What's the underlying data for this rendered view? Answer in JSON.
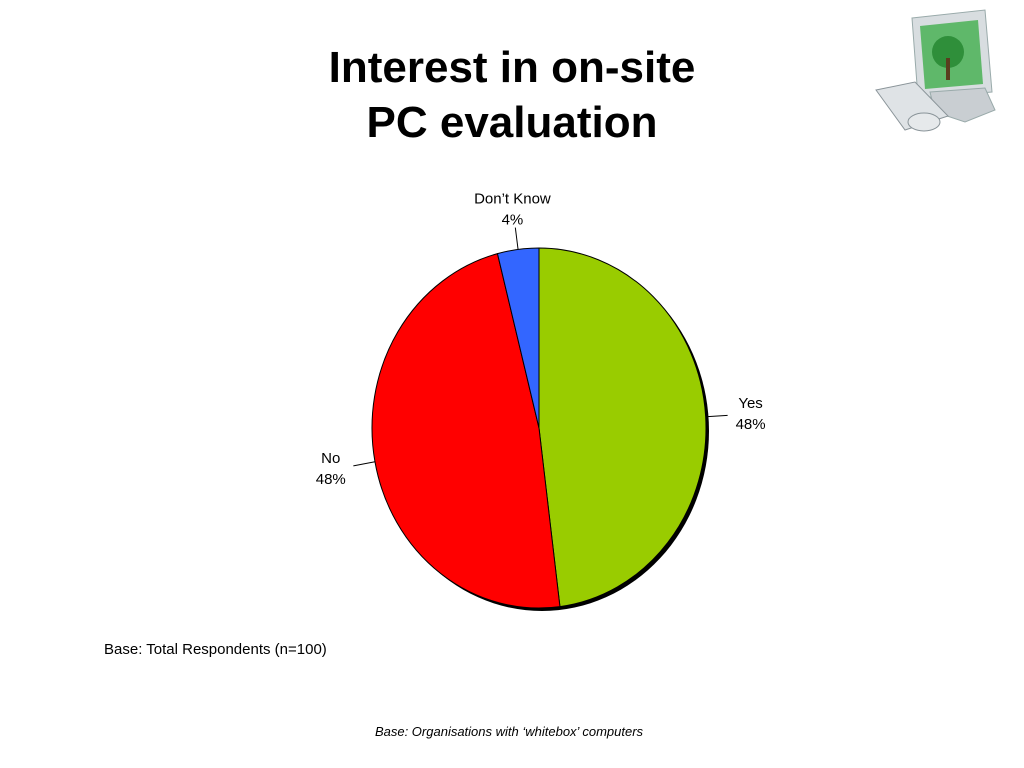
{
  "chart_data": {
    "type": "pie",
    "title_lines": [
      "Interest in on-site",
      "PC evaluation"
    ],
    "categories": [
      "Yes",
      "No",
      "Don’t Know"
    ],
    "values": [
      48,
      48,
      4
    ],
    "value_labels": [
      "48%",
      "48%",
      "4%"
    ],
    "colors": [
      "#99cc00",
      "#ff0000",
      "#3366ff"
    ],
    "note": "Base: Total Respondents (n=100)",
    "footer": "Base:  Organisations with ‘whitebox’ computers"
  }
}
